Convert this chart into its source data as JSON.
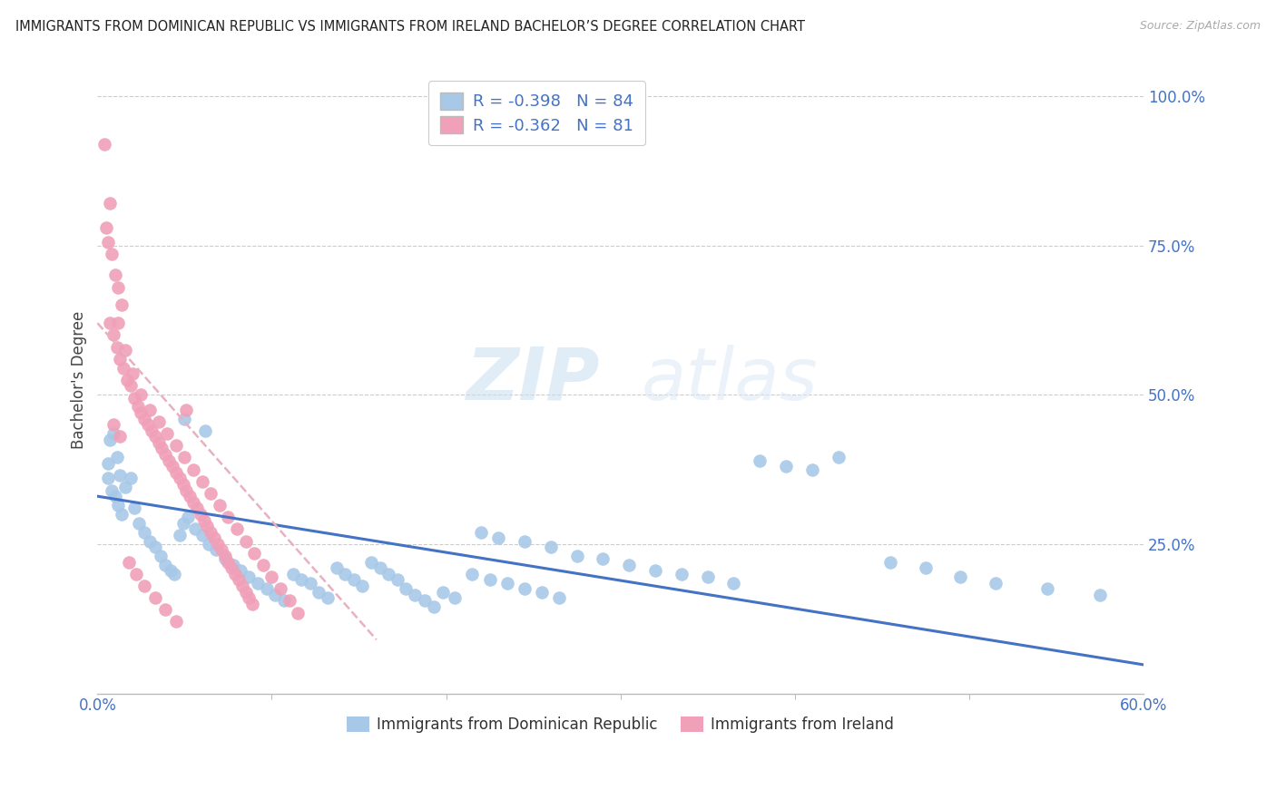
{
  "title": "IMMIGRANTS FROM DOMINICAN REPUBLIC VS IMMIGRANTS FROM IRELAND BACHELOR’S DEGREE CORRELATION CHART",
  "source": "Source: ZipAtlas.com",
  "ylabel": "Bachelor's Degree",
  "right_ytick_vals": [
    1.0,
    0.75,
    0.5,
    0.25
  ],
  "right_ytick_labels": [
    "100.0%",
    "75.0%",
    "50.0%",
    "25.0%"
  ],
  "legend_blue_label": "R = -0.398   N = 84",
  "legend_pink_label": "R = -0.362   N = 81",
  "legend_blue_scatter": "Immigrants from Dominican Republic",
  "legend_pink_scatter": "Immigrants from Ireland",
  "watermark_zip": "ZIP",
  "watermark_atlas": "atlas",
  "blue_color": "#a8c8e8",
  "pink_color": "#f0a0b8",
  "blue_line_color": "#4472c4",
  "pink_line_color": "#e8b0c0",
  "blue_scatter": [
    [
      0.006,
      0.385
    ],
    [
      0.007,
      0.425
    ],
    [
      0.009,
      0.435
    ],
    [
      0.011,
      0.395
    ],
    [
      0.013,
      0.365
    ],
    [
      0.016,
      0.345
    ],
    [
      0.019,
      0.36
    ],
    [
      0.021,
      0.31
    ],
    [
      0.024,
      0.285
    ],
    [
      0.027,
      0.27
    ],
    [
      0.006,
      0.36
    ],
    [
      0.008,
      0.34
    ],
    [
      0.01,
      0.33
    ],
    [
      0.012,
      0.315
    ],
    [
      0.014,
      0.3
    ],
    [
      0.03,
      0.255
    ],
    [
      0.033,
      0.245
    ],
    [
      0.036,
      0.23
    ],
    [
      0.039,
      0.215
    ],
    [
      0.042,
      0.205
    ],
    [
      0.044,
      0.2
    ],
    [
      0.047,
      0.265
    ],
    [
      0.049,
      0.285
    ],
    [
      0.052,
      0.295
    ],
    [
      0.056,
      0.275
    ],
    [
      0.06,
      0.265
    ],
    [
      0.064,
      0.25
    ],
    [
      0.068,
      0.24
    ],
    [
      0.073,
      0.225
    ],
    [
      0.078,
      0.215
    ],
    [
      0.082,
      0.205
    ],
    [
      0.087,
      0.195
    ],
    [
      0.092,
      0.185
    ],
    [
      0.097,
      0.175
    ],
    [
      0.102,
      0.165
    ],
    [
      0.107,
      0.155
    ],
    [
      0.112,
      0.2
    ],
    [
      0.117,
      0.19
    ],
    [
      0.122,
      0.185
    ],
    [
      0.127,
      0.17
    ],
    [
      0.132,
      0.16
    ],
    [
      0.137,
      0.21
    ],
    [
      0.142,
      0.2
    ],
    [
      0.147,
      0.19
    ],
    [
      0.152,
      0.18
    ],
    [
      0.157,
      0.22
    ],
    [
      0.162,
      0.21
    ],
    [
      0.167,
      0.2
    ],
    [
      0.172,
      0.19
    ],
    [
      0.177,
      0.175
    ],
    [
      0.182,
      0.165
    ],
    [
      0.188,
      0.155
    ],
    [
      0.193,
      0.145
    ],
    [
      0.198,
      0.17
    ],
    [
      0.205,
      0.16
    ],
    [
      0.215,
      0.2
    ],
    [
      0.225,
      0.19
    ],
    [
      0.235,
      0.185
    ],
    [
      0.245,
      0.175
    ],
    [
      0.255,
      0.17
    ],
    [
      0.265,
      0.16
    ],
    [
      0.22,
      0.27
    ],
    [
      0.23,
      0.26
    ],
    [
      0.245,
      0.255
    ],
    [
      0.26,
      0.245
    ],
    [
      0.275,
      0.23
    ],
    [
      0.29,
      0.225
    ],
    [
      0.305,
      0.215
    ],
    [
      0.32,
      0.205
    ],
    [
      0.335,
      0.2
    ],
    [
      0.35,
      0.195
    ],
    [
      0.365,
      0.185
    ],
    [
      0.38,
      0.39
    ],
    [
      0.395,
      0.38
    ],
    [
      0.41,
      0.375
    ],
    [
      0.425,
      0.395
    ],
    [
      0.455,
      0.22
    ],
    [
      0.475,
      0.21
    ],
    [
      0.495,
      0.195
    ],
    [
      0.515,
      0.185
    ],
    [
      0.545,
      0.175
    ],
    [
      0.575,
      0.165
    ],
    [
      0.05,
      0.46
    ],
    [
      0.062,
      0.44
    ]
  ],
  "pink_scatter": [
    [
      0.004,
      0.92
    ],
    [
      0.007,
      0.82
    ],
    [
      0.005,
      0.78
    ],
    [
      0.006,
      0.755
    ],
    [
      0.008,
      0.735
    ],
    [
      0.01,
      0.7
    ],
    [
      0.012,
      0.68
    ],
    [
      0.014,
      0.65
    ],
    [
      0.007,
      0.62
    ],
    [
      0.009,
      0.6
    ],
    [
      0.011,
      0.58
    ],
    [
      0.013,
      0.56
    ],
    [
      0.015,
      0.545
    ],
    [
      0.017,
      0.525
    ],
    [
      0.019,
      0.515
    ],
    [
      0.021,
      0.495
    ],
    [
      0.023,
      0.48
    ],
    [
      0.025,
      0.47
    ],
    [
      0.027,
      0.46
    ],
    [
      0.029,
      0.45
    ],
    [
      0.031,
      0.44
    ],
    [
      0.033,
      0.43
    ],
    [
      0.035,
      0.42
    ],
    [
      0.037,
      0.41
    ],
    [
      0.039,
      0.4
    ],
    [
      0.041,
      0.39
    ],
    [
      0.043,
      0.38
    ],
    [
      0.045,
      0.37
    ],
    [
      0.047,
      0.36
    ],
    [
      0.049,
      0.35
    ],
    [
      0.051,
      0.34
    ],
    [
      0.053,
      0.33
    ],
    [
      0.055,
      0.32
    ],
    [
      0.057,
      0.31
    ],
    [
      0.059,
      0.3
    ],
    [
      0.061,
      0.29
    ],
    [
      0.063,
      0.28
    ],
    [
      0.065,
      0.27
    ],
    [
      0.067,
      0.26
    ],
    [
      0.069,
      0.25
    ],
    [
      0.071,
      0.24
    ],
    [
      0.073,
      0.23
    ],
    [
      0.075,
      0.22
    ],
    [
      0.077,
      0.21
    ],
    [
      0.079,
      0.2
    ],
    [
      0.081,
      0.19
    ],
    [
      0.083,
      0.18
    ],
    [
      0.085,
      0.17
    ],
    [
      0.087,
      0.16
    ],
    [
      0.089,
      0.15
    ],
    [
      0.012,
      0.62
    ],
    [
      0.016,
      0.575
    ],
    [
      0.02,
      0.535
    ],
    [
      0.025,
      0.5
    ],
    [
      0.03,
      0.475
    ],
    [
      0.035,
      0.455
    ],
    [
      0.04,
      0.435
    ],
    [
      0.045,
      0.415
    ],
    [
      0.05,
      0.395
    ],
    [
      0.055,
      0.375
    ],
    [
      0.06,
      0.355
    ],
    [
      0.065,
      0.335
    ],
    [
      0.07,
      0.315
    ],
    [
      0.075,
      0.295
    ],
    [
      0.08,
      0.275
    ],
    [
      0.085,
      0.255
    ],
    [
      0.09,
      0.235
    ],
    [
      0.095,
      0.215
    ],
    [
      0.1,
      0.195
    ],
    [
      0.105,
      0.175
    ],
    [
      0.11,
      0.155
    ],
    [
      0.115,
      0.135
    ],
    [
      0.009,
      0.45
    ],
    [
      0.013,
      0.43
    ],
    [
      0.018,
      0.22
    ],
    [
      0.022,
      0.2
    ],
    [
      0.027,
      0.18
    ],
    [
      0.033,
      0.16
    ],
    [
      0.039,
      0.14
    ],
    [
      0.045,
      0.12
    ],
    [
      0.051,
      0.475
    ]
  ],
  "blue_trend_x": [
    0.0,
    0.6
  ],
  "blue_trend_y": [
    0.33,
    0.048
  ],
  "pink_trend_x": [
    0.0,
    0.16
  ],
  "pink_trend_y": [
    0.62,
    0.09
  ],
  "xlim": [
    0.0,
    0.6
  ],
  "ylim": [
    0.0,
    1.05
  ],
  "xtick_positions": [
    0.0,
    0.6
  ],
  "xtick_labels": [
    "0.0%",
    "60.0%"
  ]
}
